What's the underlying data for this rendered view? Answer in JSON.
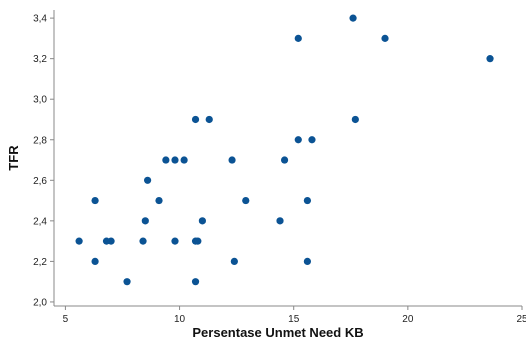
{
  "chart_data": {
    "type": "scatter",
    "title": "",
    "xlabel": "Persentase Unmet Need KB",
    "ylabel": "TFR",
    "xlim": [
      4.5,
      25
    ],
    "ylim": [
      1.98,
      3.44
    ],
    "x_ticks": [
      5,
      10,
      15,
      20,
      25
    ],
    "x_tick_labels": [
      "5",
      "10",
      "15",
      "20",
      "25"
    ],
    "y_ticks": [
      2.0,
      2.2,
      2.4,
      2.6,
      2.8,
      3.0,
      3.2,
      3.4
    ],
    "y_tick_labels": [
      "2,0",
      "2,2",
      "2,4",
      "2,6",
      "2,8",
      "3,0",
      "3,2",
      "3,4"
    ],
    "grid": false,
    "marker_color": "#0b5394",
    "points": [
      {
        "x": 5.6,
        "y": 2.3
      },
      {
        "x": 6.3,
        "y": 2.5
      },
      {
        "x": 6.3,
        "y": 2.2
      },
      {
        "x": 6.8,
        "y": 2.3
      },
      {
        "x": 7.0,
        "y": 2.3
      },
      {
        "x": 7.7,
        "y": 2.1
      },
      {
        "x": 8.4,
        "y": 2.3
      },
      {
        "x": 8.5,
        "y": 2.4
      },
      {
        "x": 8.6,
        "y": 2.6
      },
      {
        "x": 9.1,
        "y": 2.5
      },
      {
        "x": 9.4,
        "y": 2.7
      },
      {
        "x": 9.8,
        "y": 2.3
      },
      {
        "x": 9.8,
        "y": 2.7
      },
      {
        "x": 10.2,
        "y": 2.7
      },
      {
        "x": 10.7,
        "y": 2.9
      },
      {
        "x": 10.7,
        "y": 2.3
      },
      {
        "x": 10.8,
        "y": 2.3
      },
      {
        "x": 10.7,
        "y": 2.1
      },
      {
        "x": 11.0,
        "y": 2.4
      },
      {
        "x": 11.3,
        "y": 2.9
      },
      {
        "x": 12.3,
        "y": 2.7
      },
      {
        "x": 12.4,
        "y": 2.2
      },
      {
        "x": 12.9,
        "y": 2.5
      },
      {
        "x": 14.4,
        "y": 2.4
      },
      {
        "x": 14.6,
        "y": 2.7
      },
      {
        "x": 15.2,
        "y": 3.3
      },
      {
        "x": 15.2,
        "y": 2.8
      },
      {
        "x": 15.6,
        "y": 2.5
      },
      {
        "x": 15.6,
        "y": 2.2
      },
      {
        "x": 15.8,
        "y": 2.8
      },
      {
        "x": 17.6,
        "y": 3.4
      },
      {
        "x": 17.7,
        "y": 2.9
      },
      {
        "x": 19.0,
        "y": 3.3
      },
      {
        "x": 23.6,
        "y": 3.2
      }
    ]
  }
}
